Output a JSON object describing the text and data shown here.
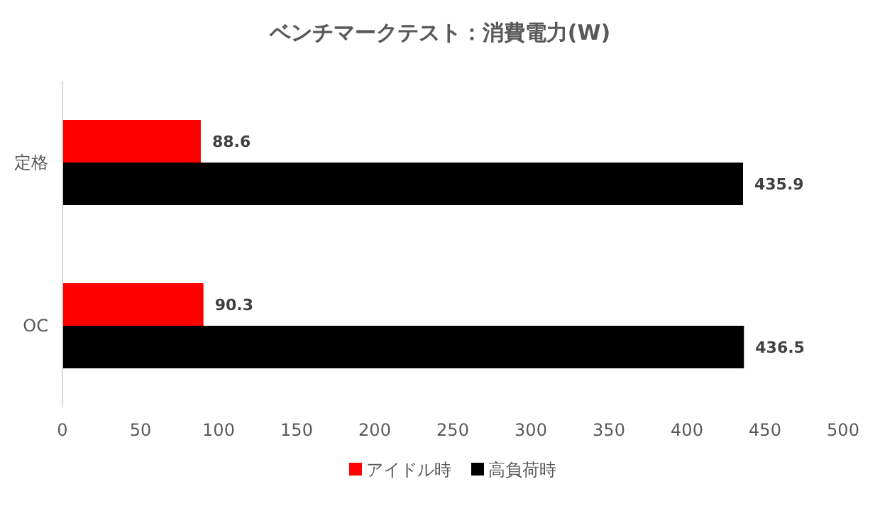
{
  "chart_data": {
    "type": "bar",
    "orientation": "horizontal",
    "title": "ベンチマークテスト：消費電力(W)",
    "categories": [
      "定格",
      "OC"
    ],
    "series": [
      {
        "name": "アイドル時",
        "color": "#ff0000",
        "values": [
          88.6,
          90.3
        ]
      },
      {
        "name": "高負荷時",
        "color": "#000000",
        "values": [
          435.9,
          436.5
        ]
      }
    ],
    "xlim": [
      0,
      500
    ],
    "xticks": [
      0,
      50,
      100,
      150,
      200,
      250,
      300,
      350,
      400,
      450,
      500
    ],
    "data_labels": true,
    "legend": "bottom",
    "grid": false
  }
}
